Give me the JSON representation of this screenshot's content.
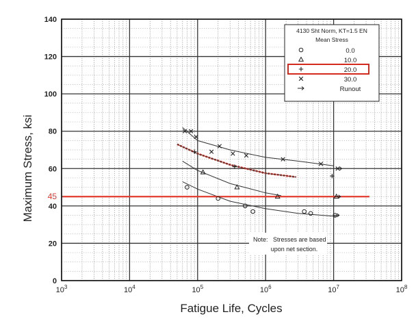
{
  "chart_data": {
    "type": "scatter",
    "ylabel": "Maximum Stress, ksi",
    "xlabel": "Fatigue Life, Cycles",
    "xscale": "log",
    "xlim": [
      1000,
      100000000
    ],
    "ylim": [
      0,
      140
    ],
    "grid": true,
    "x_ticks": [
      {
        "value": 1000,
        "base": "10",
        "exp": "3"
      },
      {
        "value": 10000,
        "base": "10",
        "exp": "4"
      },
      {
        "value": 100000,
        "base": "10",
        "exp": "5"
      },
      {
        "value": 1000000,
        "base": "10",
        "exp": "6"
      },
      {
        "value": 10000000,
        "base": "10",
        "exp": "7"
      },
      {
        "value": 100000000,
        "base": "10",
        "exp": "8"
      }
    ],
    "y_ticks": [
      "0",
      "20",
      "40",
      "60",
      "80",
      "100",
      "120",
      "140"
    ],
    "legend": {
      "position": "top-right",
      "title_line1": "4130 Sht Norm, KT=1.5 EN",
      "title_line2": "Mean Stress",
      "entries": [
        {
          "marker": "o",
          "label": "0.0"
        },
        {
          "marker": "Δ",
          "label": "10.0"
        },
        {
          "marker": "+",
          "label": "20.0",
          "highlighted": true
        },
        {
          "marker": "x",
          "label": "30.0"
        },
        {
          "marker": "→",
          "label": "Runout"
        }
      ]
    },
    "reference_line": {
      "y": 45,
      "label": "45",
      "color": "#e23b2e"
    },
    "highlight_color": "#d42a1e",
    "note_line1": "Note:   Stresses are based",
    "note_line2": "upon net section.",
    "series": [
      {
        "mean_stress": "0.0",
        "marker": "o",
        "points": [
          [
            70000,
            50
          ],
          [
            200000,
            44
          ],
          [
            500000,
            40
          ],
          [
            650000,
            37
          ],
          [
            3700000,
            37
          ],
          [
            4600000,
            36
          ],
          [
            10500000,
            35
          ]
        ],
        "runout": [
          [
            11000000,
            35
          ]
        ],
        "fit": [
          [
            60000,
            53
          ],
          [
            100000,
            49
          ],
          [
            300000,
            42.5
          ],
          [
            1000000,
            38.5
          ],
          [
            3000000,
            36
          ],
          [
            10000000,
            34.5
          ],
          [
            11000000,
            34.3
          ]
        ]
      },
      {
        "mean_stress": "10.0",
        "marker": "Δ",
        "points": [
          [
            120000,
            58
          ],
          [
            380000,
            50
          ],
          [
            1500000,
            45
          ],
          [
            11000000,
            45
          ]
        ],
        "runout": [
          [
            11500000,
            45
          ]
        ],
        "fit": [
          [
            60000,
            64
          ],
          [
            100000,
            59
          ],
          [
            300000,
            52
          ],
          [
            1000000,
            47
          ],
          [
            1700000,
            45.5
          ]
        ]
      },
      {
        "mean_stress": "20.0",
        "marker": "+",
        "points": [
          [
            90000,
            69
          ],
          [
            350000,
            61
          ],
          [
            9500000,
            56
          ]
        ],
        "runout": [],
        "fit": [
          [
            50000,
            73
          ],
          [
            100000,
            68
          ],
          [
            300000,
            62
          ],
          [
            1000000,
            57.5
          ],
          [
            2800000,
            55.5
          ]
        ]
      },
      {
        "mean_stress": "30.0",
        "marker": "x",
        "points": [
          [
            65000,
            80
          ],
          [
            80000,
            80
          ],
          [
            95000,
            77
          ],
          [
            160000,
            69
          ],
          [
            210000,
            72
          ],
          [
            330000,
            68
          ],
          [
            520000,
            67
          ],
          [
            1800000,
            65
          ],
          [
            6500000,
            62.5
          ],
          [
            11500000,
            60
          ]
        ],
        "runout": [
          [
            12000000,
            60
          ]
        ],
        "fit": [
          [
            60000,
            82
          ],
          [
            100000,
            75
          ],
          [
            300000,
            70
          ],
          [
            1000000,
            66
          ],
          [
            3000000,
            64
          ],
          [
            10000000,
            61.5
          ]
        ]
      }
    ]
  }
}
